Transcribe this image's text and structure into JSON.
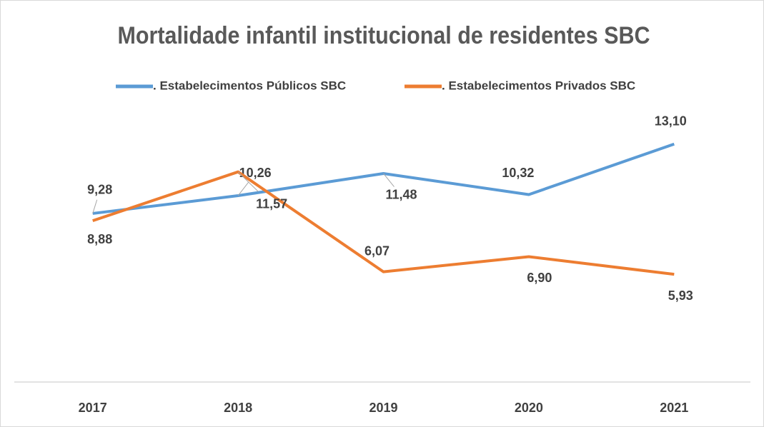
{
  "chart_data": {
    "type": "line",
    "title": "Mortalidade infantil institucional de residentes SBC",
    "categories": [
      "2017",
      "2018",
      "2019",
      "2020",
      "2021"
    ],
    "ylim": [
      0,
      16
    ],
    "legend": "top",
    "series": [
      {
        "name": ". Estabelecimentos Públicos SBC",
        "color": "#5b9bd5",
        "values": [
          9.28,
          10.26,
          11.48,
          10.32,
          13.1
        ],
        "value_labels": [
          "9,28",
          "10,26",
          "11,48",
          "10,32",
          "13,10"
        ]
      },
      {
        "name": ". Estabelecimentos Privados SBC",
        "color": "#ed7d31",
        "values": [
          8.88,
          11.57,
          6.07,
          6.9,
          5.93
        ],
        "value_labels": [
          "8,88",
          "11,57",
          "6,07",
          "6,90",
          "5,93"
        ]
      }
    ]
  }
}
